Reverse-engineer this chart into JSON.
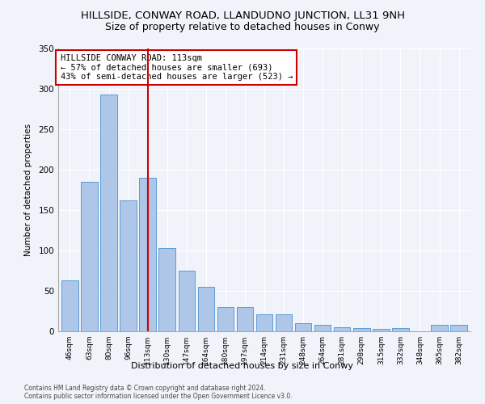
{
  "title": "HILLSIDE, CONWAY ROAD, LLANDUDNO JUNCTION, LL31 9NH",
  "subtitle": "Size of property relative to detached houses in Conwy",
  "xlabel": "Distribution of detached houses by size in Conwy",
  "ylabel": "Number of detached properties",
  "categories": [
    "46sqm",
    "63sqm",
    "80sqm",
    "96sqm",
    "113sqm",
    "130sqm",
    "147sqm",
    "164sqm",
    "180sqm",
    "197sqm",
    "214sqm",
    "231sqm",
    "248sqm",
    "264sqm",
    "281sqm",
    "298sqm",
    "315sqm",
    "332sqm",
    "348sqm",
    "365sqm",
    "382sqm"
  ],
  "values": [
    63,
    185,
    293,
    162,
    190,
    103,
    75,
    55,
    30,
    30,
    21,
    21,
    10,
    8,
    5,
    4,
    3,
    4,
    0,
    8,
    8
  ],
  "bar_color": "#aec6e8",
  "bar_edgecolor": "#5b9bd5",
  "vline_index": 4,
  "vline_color": "#cc0000",
  "annotation_text": "HILLSIDE CONWAY ROAD: 113sqm\n← 57% of detached houses are smaller (693)\n43% of semi-detached houses are larger (523) →",
  "annotation_box_color": "#ffffff",
  "annotation_box_edgecolor": "#cc0000",
  "ylim": [
    0,
    350
  ],
  "yticks": [
    0,
    50,
    100,
    150,
    200,
    250,
    300,
    350
  ],
  "footer_text": "Contains HM Land Registry data © Crown copyright and database right 2024.\nContains public sector information licensed under the Open Government Licence v3.0.",
  "bg_color": "#f0f4fa",
  "plot_bg_color": "#f0f4fa",
  "title_fontsize": 9.5,
  "subtitle_fontsize": 9
}
